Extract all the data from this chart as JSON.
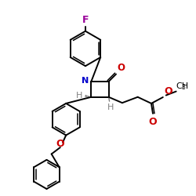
{
  "bg_color": "#ffffff",
  "bond_color": "#000000",
  "N_color": "#0000cc",
  "O_color": "#cc0000",
  "F_color": "#990099",
  "H_color": "#808080",
  "figsize": [
    2.5,
    2.5
  ],
  "dpi": 100,
  "lw": 1.4,
  "lw_double": 1.1,
  "xlim": [
    0,
    10
  ],
  "ylim": [
    0,
    10
  ]
}
